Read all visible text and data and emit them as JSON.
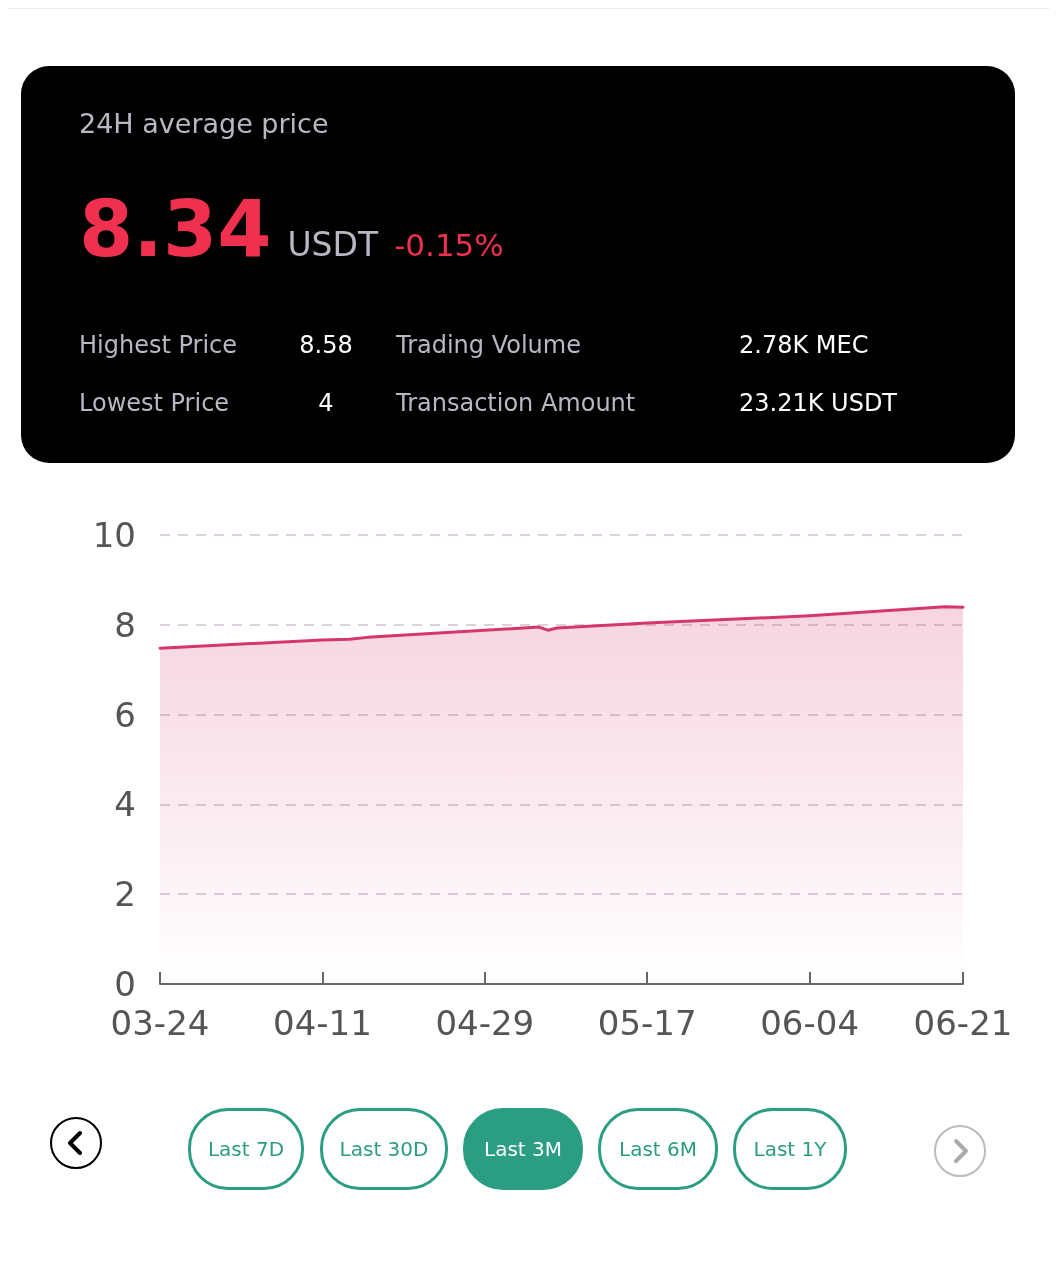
{
  "chart_data": [
    {
      "type": "other",
      "title": "24H average price",
      "annotations": [
        "8.34",
        "USDT",
        "-0.15%",
        "Highest Price",
        "8.58",
        "Trading Volume",
        "2.78K MEC",
        "Lowest Price",
        "4",
        "Transaction Amount",
        "23.21K USDT"
      ]
    },
    {
      "type": "area",
      "x": [
        "--03-24",
        "--04-11",
        "--04-14",
        "--04-16",
        "--05-05",
        "--05-06",
        "--05-07",
        "--05-17",
        "--06-04",
        "--06-19",
        "--06-21"
      ],
      "series": [
        {
          "color": "#d6376b",
          "values": [
            7.48,
            7.66,
            7.68,
            7.72,
            7.95,
            7.88,
            7.93,
            8.04,
            8.2,
            8.4,
            8.39
          ]
        }
      ],
      "xlim": [
        "--03-24",
        "--06-21"
      ],
      "xticks": [
        {
          "value": "--03-24",
          "label": "03-24"
        },
        {
          "value": "--04-11",
          "label": "04-11"
        },
        {
          "value": "--04-29",
          "label": "04-29"
        },
        {
          "value": "--05-17",
          "label": "05-17"
        },
        {
          "value": "--06-04",
          "label": "06-04"
        },
        {
          "value": "--06-21",
          "label": "06-21"
        }
      ],
      "ylim": [
        0,
        10
      ],
      "yticks": [
        0,
        2,
        4,
        6,
        8,
        10
      ],
      "grid": "y",
      "line_style": "solid",
      "marker": "none"
    },
    {
      "type": "other",
      "annotations": [
        "Last 7D",
        "Last 30D",
        "Last 3M",
        "Last 6M",
        "Last 1Y"
      ]
    }
  ]
}
